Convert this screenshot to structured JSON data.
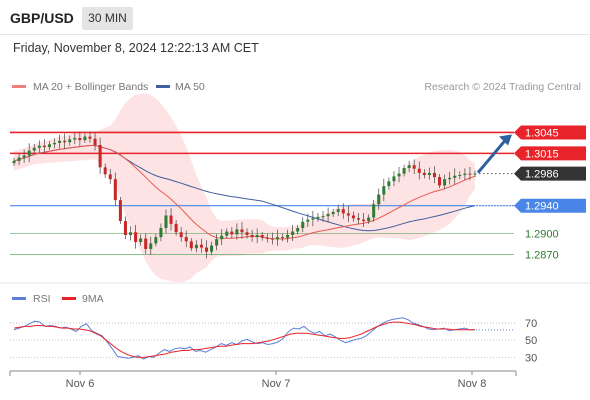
{
  "header": {
    "symbol": "GBP/USD",
    "timeframe": "30 MIN",
    "datetime": "Friday, November 8, 2024 12:22:13 AM CET"
  },
  "colors": {
    "resistance": "#e8232a",
    "support": "#4a86e8",
    "support_weak": "#5aa85a",
    "current": "#333333",
    "ma20": "#e85a4f",
    "ma50": "#3f5f9f",
    "band_fill": "#fddcdc",
    "candle_up": "#2e7d32",
    "candle_down": "#c62828",
    "arrow": "#2f5f9e",
    "rsi": "#5b7fd9",
    "rsi_ma": "#e8232a"
  },
  "chart_data": [
    {
      "type": "candlestick",
      "legend": [
        {
          "label": "MA 20 + Bollinger Bands",
          "color": "#f08080"
        },
        {
          "label": "MA 50",
          "color": "#3f5f9f"
        }
      ],
      "credit": "Research © 2024 Trading Central",
      "x_labels": [
        "Nov 6",
        "Nov 7",
        "Nov 8"
      ],
      "ylim": [
        1.2845,
        1.307
      ],
      "levels": [
        {
          "value": 1.3045,
          "label": "1.3045",
          "kind": "resistance"
        },
        {
          "value": 1.3015,
          "label": "1.3015",
          "kind": "resistance"
        },
        {
          "value": 1.2986,
          "label": "1.2986",
          "kind": "current"
        },
        {
          "value": 1.294,
          "label": "1.2940",
          "kind": "support"
        },
        {
          "value": 1.29,
          "label": "1.2900",
          "kind": "support_weak"
        },
        {
          "value": 1.287,
          "label": "1.2870",
          "kind": "support_weak"
        }
      ],
      "forecast": {
        "from": 1.2986,
        "to": 1.3045
      },
      "closes": [
        1.3004,
        1.3009,
        1.3012,
        1.3019,
        1.3023,
        1.3026,
        1.3024,
        1.3028,
        1.303,
        1.3033,
        1.3031,
        1.3035,
        1.3037,
        1.3034,
        1.3039,
        1.3036,
        1.3027,
        1.2995,
        1.2985,
        1.2978,
        1.2948,
        1.2918,
        1.2898,
        1.2902,
        1.2888,
        1.2893,
        1.2878,
        1.2886,
        1.2895,
        1.2908,
        1.2926,
        1.2914,
        1.2902,
        1.2895,
        1.2889,
        1.2879,
        1.2884,
        1.288,
        1.2874,
        1.2883,
        1.2892,
        1.2897,
        1.2903,
        1.2899,
        1.2906,
        1.2902,
        1.2898,
        1.2895,
        1.2898,
        1.2894,
        1.2893,
        1.2892,
        1.2895,
        1.2894,
        1.2898,
        1.2903,
        1.2908,
        1.2917,
        1.292,
        1.2922,
        1.2924,
        1.2925,
        1.2928,
        1.2931,
        1.2935,
        1.2929,
        1.2926,
        1.2922,
        1.292,
        1.2918,
        1.2923,
        1.2942,
        1.2956,
        1.2968,
        1.2975,
        1.2982,
        1.2986,
        1.2994,
        1.2998,
        1.2993,
        1.2987,
        1.2984,
        1.2987,
        1.2981,
        1.2969,
        1.2978,
        1.298,
        1.2983,
        1.2984,
        1.2986,
        1.2985,
        1.2986
      ]
    },
    {
      "type": "line",
      "legend": [
        {
          "label": "RSI",
          "color": "#5b7fd9"
        },
        {
          "label": "9MA",
          "color": "#e8232a"
        }
      ],
      "y_ticks": [
        70,
        50,
        30
      ],
      "ylim": [
        20,
        85
      ],
      "rsi": [
        62,
        64,
        66,
        69,
        72,
        71,
        66,
        67,
        66,
        64,
        65,
        63,
        60,
        66,
        69,
        61,
        58,
        55,
        48,
        40,
        31,
        30,
        29,
        30,
        32,
        28,
        31,
        30,
        35,
        39,
        37,
        40,
        41,
        40,
        42,
        37,
        38,
        36,
        39,
        42,
        46,
        44,
        47,
        45,
        49,
        51,
        48,
        46,
        47,
        45,
        46,
        48,
        52,
        60,
        64,
        63,
        66,
        61,
        58,
        60,
        55,
        57,
        54,
        50,
        47,
        49,
        51,
        52,
        55,
        60,
        65,
        69,
        72,
        74,
        75,
        76,
        74,
        70,
        68,
        66,
        63,
        62,
        63,
        64,
        61,
        62,
        63,
        64,
        62,
        62
      ],
      "rsi_ma": [
        64,
        65,
        66,
        66,
        67,
        67,
        66,
        66,
        65,
        64,
        64,
        63,
        63,
        62,
        61,
        58,
        55,
        50,
        45,
        40,
        36,
        33,
        31,
        30,
        30,
        31,
        32,
        33,
        34,
        36,
        37,
        38,
        38,
        39,
        39,
        40,
        41,
        42,
        43,
        43,
        44,
        45,
        46,
        46,
        46,
        47,
        48,
        49,
        51,
        53,
        55,
        57,
        58,
        58,
        58,
        57,
        56,
        55,
        54,
        53,
        52,
        52,
        53,
        55,
        57,
        60,
        63,
        66,
        68,
        70,
        71,
        71,
        70,
        69,
        68,
        66,
        65,
        64,
        63,
        63,
        63,
        62,
        62,
        62,
        62,
        62
      ]
    }
  ]
}
